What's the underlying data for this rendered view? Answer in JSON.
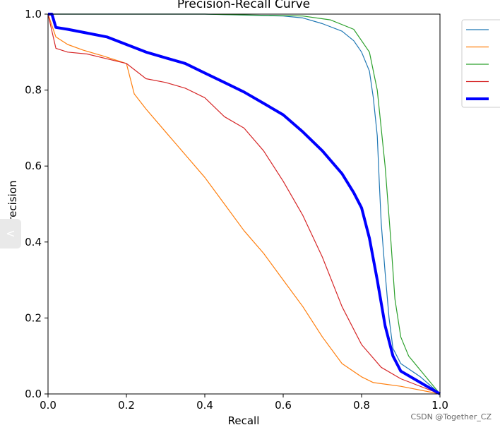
{
  "chart_data": {
    "type": "line",
    "title": "Precision-Recall Curve",
    "xlabel": "Recall",
    "ylabel": "Precision",
    "xlim": [
      0,
      1
    ],
    "ylim": [
      0,
      1
    ],
    "xticks": [
      "0.0",
      "0.2",
      "0.4",
      "0.6",
      "0.8",
      "1.0"
    ],
    "yticks": [
      "0.0",
      "0.2",
      "0.4",
      "0.6",
      "0.8",
      "1.0"
    ],
    "grid": false,
    "legend": "outside-right",
    "series": [
      {
        "name": "",
        "color": "#1f77b4",
        "width": 1.2,
        "x": [
          0.0,
          0.4,
          0.6,
          0.65,
          0.7,
          0.75,
          0.78,
          0.8,
          0.82,
          0.83,
          0.84,
          0.845,
          0.85,
          0.86,
          0.87,
          0.88,
          0.9,
          0.95,
          1.0
        ],
        "y": [
          1.0,
          1.0,
          0.995,
          0.99,
          0.975,
          0.955,
          0.93,
          0.9,
          0.85,
          0.78,
          0.68,
          0.56,
          0.45,
          0.32,
          0.2,
          0.12,
          0.08,
          0.045,
          0.0
        ]
      },
      {
        "name": "",
        "color": "#ff7f0e",
        "width": 1.2,
        "x": [
          0.0,
          0.02,
          0.05,
          0.09,
          0.14,
          0.2,
          0.22,
          0.25,
          0.3,
          0.35,
          0.4,
          0.45,
          0.5,
          0.55,
          0.6,
          0.65,
          0.7,
          0.75,
          0.8,
          0.83,
          0.9,
          1.0
        ],
        "y": [
          1.0,
          0.94,
          0.92,
          0.905,
          0.89,
          0.87,
          0.79,
          0.75,
          0.69,
          0.63,
          0.57,
          0.5,
          0.43,
          0.37,
          0.3,
          0.23,
          0.15,
          0.08,
          0.045,
          0.03,
          0.02,
          0.0
        ]
      },
      {
        "name": "",
        "color": "#2ca02c",
        "width": 1.2,
        "x": [
          0.0,
          0.4,
          0.65,
          0.72,
          0.78,
          0.82,
          0.84,
          0.86,
          0.875,
          0.885,
          0.9,
          0.92,
          1.0
        ],
        "y": [
          1.0,
          1.0,
          0.995,
          0.985,
          0.96,
          0.9,
          0.8,
          0.6,
          0.4,
          0.25,
          0.15,
          0.1,
          0.0
        ]
      },
      {
        "name": "",
        "color": "#d62728",
        "width": 1.2,
        "x": [
          0.0,
          0.02,
          0.05,
          0.1,
          0.2,
          0.25,
          0.3,
          0.35,
          0.4,
          0.45,
          0.5,
          0.55,
          0.6,
          0.65,
          0.7,
          0.75,
          0.8,
          0.85,
          0.9,
          1.0
        ],
        "y": [
          1.0,
          0.91,
          0.9,
          0.895,
          0.87,
          0.83,
          0.82,
          0.805,
          0.78,
          0.73,
          0.7,
          0.64,
          0.56,
          0.47,
          0.36,
          0.23,
          0.13,
          0.07,
          0.04,
          0.0
        ]
      },
      {
        "name": "",
        "color": "#0000ff",
        "width": 4,
        "x": [
          0.0,
          0.01,
          0.02,
          0.05,
          0.1,
          0.15,
          0.2,
          0.25,
          0.3,
          0.35,
          0.4,
          0.45,
          0.5,
          0.55,
          0.6,
          0.65,
          0.7,
          0.75,
          0.78,
          0.8,
          0.82,
          0.84,
          0.86,
          0.88,
          0.9,
          0.95,
          1.0
        ],
        "y": [
          1.0,
          1.0,
          0.965,
          0.96,
          0.95,
          0.94,
          0.92,
          0.9,
          0.885,
          0.87,
          0.845,
          0.82,
          0.795,
          0.765,
          0.735,
          0.69,
          0.64,
          0.58,
          0.53,
          0.49,
          0.41,
          0.3,
          0.18,
          0.1,
          0.06,
          0.03,
          0.0
        ]
      }
    ]
  },
  "watermark": "CSDN @Together_CZ",
  "side_tab_icon": "<"
}
